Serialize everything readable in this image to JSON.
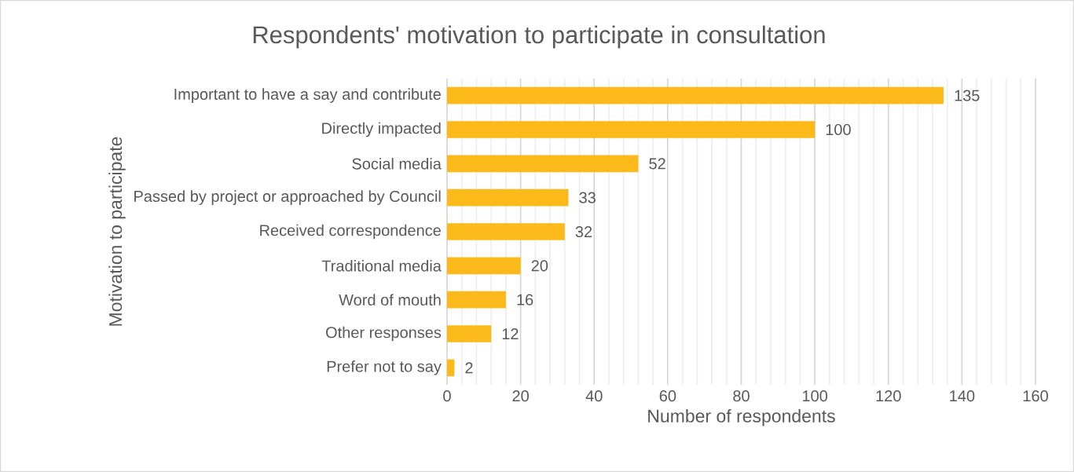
{
  "chart_data": {
    "type": "bar",
    "orientation": "horizontal",
    "title": "Respondents' motivation to participate in consultation",
    "xlabel": "Number of respondents",
    "ylabel": "Motivation to participate",
    "categories": [
      "Important to have a say and contribute",
      "Directly impacted",
      "Social media",
      "Passed by project or approached by Council",
      "Received correspondence",
      "Traditional media",
      "Word of mouth",
      "Other responses",
      "Prefer not to say"
    ],
    "values": [
      135,
      100,
      52,
      33,
      32,
      20,
      16,
      12,
      2
    ],
    "color": "#fbb91a",
    "xlim": [
      0,
      160
    ],
    "xticks": [
      0,
      20,
      40,
      60,
      80,
      100,
      120,
      140,
      160
    ],
    "grid": "x",
    "data_labels": true
  }
}
